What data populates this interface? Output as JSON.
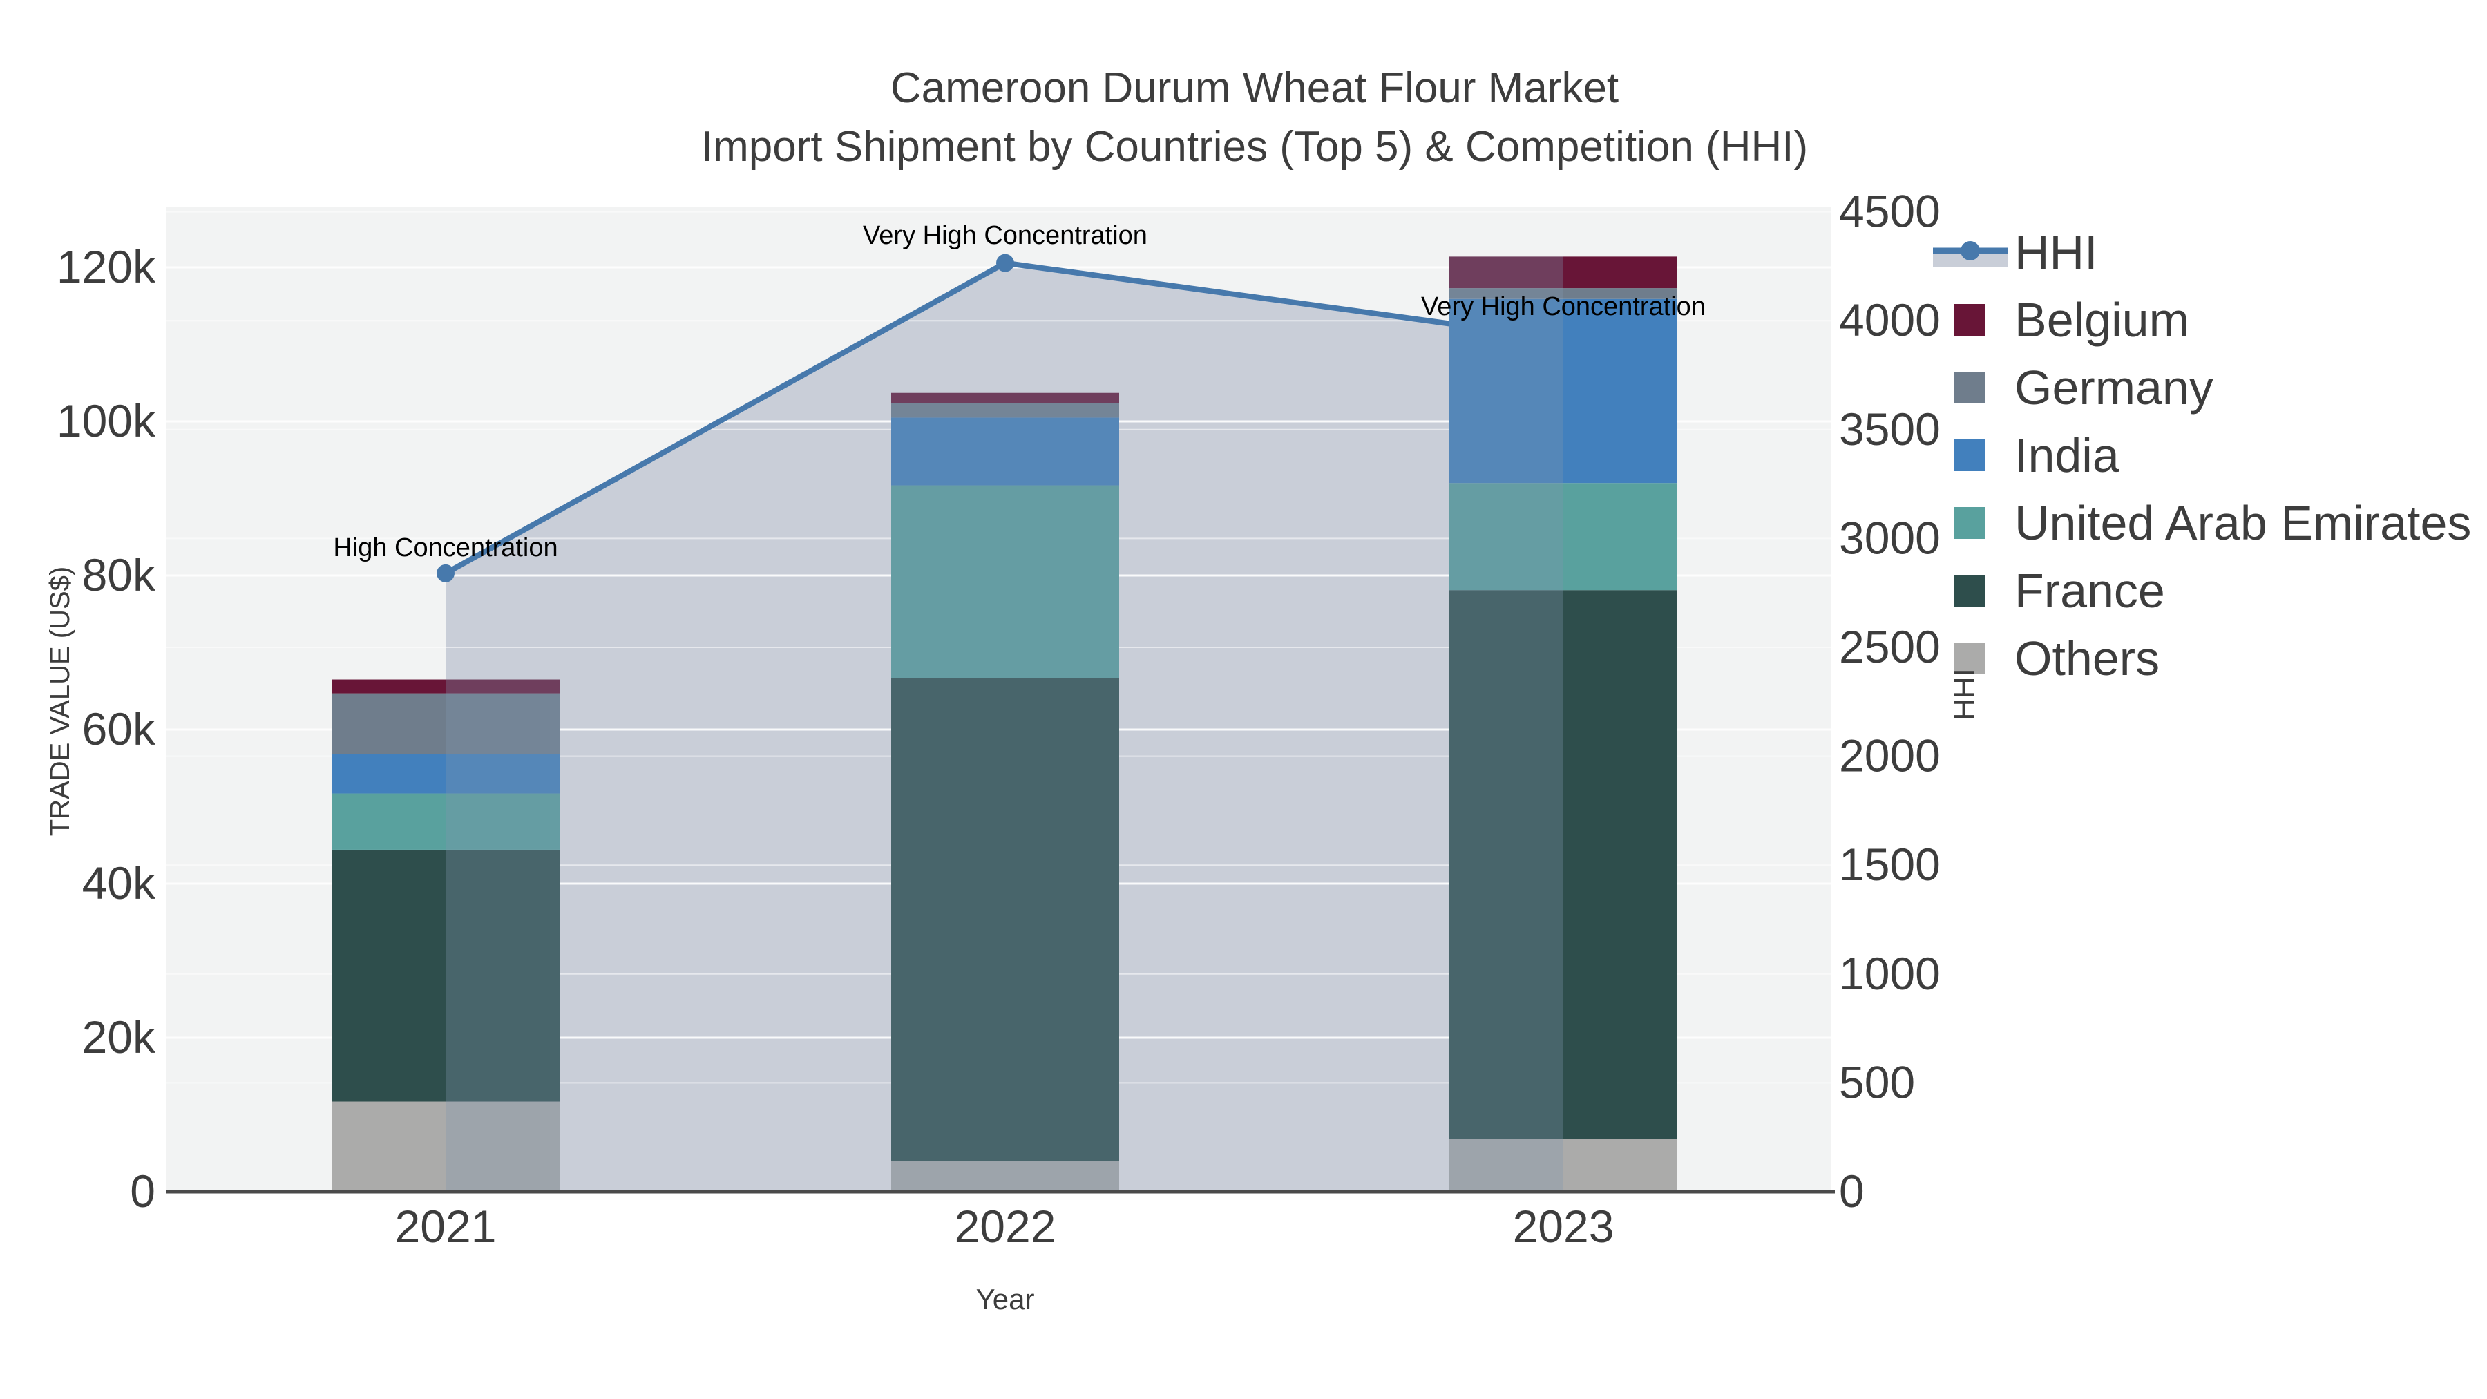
{
  "figure": {
    "title_line1": "Cameroon Durum Wheat Flour Market",
    "title_line2": "Import Shipment by Countries (Top 5) & Competition (HHI)",
    "x_axis_title": "Year",
    "y_left_title": "TRADE VALUE (US$)",
    "y_right_title": "HHI"
  },
  "legend": {
    "items": [
      {
        "label": "HHI",
        "type": "line",
        "color": "#4779AC",
        "band": "#C9CED8"
      },
      {
        "label": "Belgium",
        "type": "square",
        "color": "#681537"
      },
      {
        "label": "Germany",
        "type": "square",
        "color": "#6F7D8C"
      },
      {
        "label": "India",
        "type": "square",
        "color": "#4280BD"
      },
      {
        "label": "United Arab Emirates",
        "type": "square",
        "color": "#59A19E"
      },
      {
        "label": "France",
        "type": "square",
        "color": "#2E4E4C"
      },
      {
        "label": "Others",
        "type": "square",
        "color": "#ABABAA"
      }
    ]
  },
  "chart_data": {
    "type": "combo: stacked bar (left axis) + line with area fill (right axis)",
    "title": "Cameroon Durum Wheat Flour Market — Import Shipment by Countries (Top 5) & Competition (HHI)",
    "x_categories": [
      "2021",
      "2022",
      "2023"
    ],
    "bar_series_bottom_to_top": [
      {
        "name": "Others",
        "color": "#ABABAA",
        "values": [
          11700,
          4000,
          6900
        ]
      },
      {
        "name": "France",
        "color": "#2E4E4C",
        "values": [
          32700,
          62700,
          71200
        ]
      },
      {
        "name": "United Arab Emirates",
        "color": "#59A19E",
        "values": [
          7300,
          25000,
          13900
        ]
      },
      {
        "name": "India",
        "color": "#4280BD",
        "values": [
          5100,
          8800,
          23900
        ]
      },
      {
        "name": "Germany",
        "color": "#6F7D8C",
        "values": [
          7900,
          1900,
          1400
        ]
      },
      {
        "name": "Belgium",
        "color": "#681537",
        "values": [
          1800,
          1300,
          4100
        ]
      }
    ],
    "bar_totals": [
      66500,
      103700,
      121400
    ],
    "line_series": {
      "name": "HHI",
      "axis": "right",
      "values": [
        2840,
        4265,
        3915
      ],
      "color": "#4779AC",
      "area_fill": "#C9CED8"
    },
    "annotations": [
      {
        "x": "2021",
        "text": "High Concentration"
      },
      {
        "x": "2022",
        "text": "Very High Concentration"
      },
      {
        "x": "2023",
        "text": "Very High Concentration"
      }
    ],
    "y_left": {
      "title": "TRADE VALUE (US$)",
      "tick_labels": [
        "0",
        "20k",
        "40k",
        "60k",
        "80k",
        "100k",
        "120k"
      ],
      "tick_values": [
        0,
        20000,
        40000,
        60000,
        80000,
        100000,
        120000
      ],
      "range": [
        0,
        127800
      ]
    },
    "y_right": {
      "title": "HHI",
      "tick_labels": [
        "0",
        "500",
        "1000",
        "1500",
        "2000",
        "2500",
        "3000",
        "3500",
        "4000",
        "4500"
      ],
      "tick_values": [
        0,
        500,
        1000,
        1500,
        2000,
        2500,
        3000,
        3500,
        4000,
        4500
      ],
      "range": [
        0,
        4520
      ]
    },
    "x_axis": {
      "title": "Year"
    },
    "grid": true,
    "legend_position": "right"
  },
  "colors": {
    "background": "#FFFFFF",
    "plot_background": "#F2F3F3",
    "grid": "#FFFFFF",
    "axis_line": "#4A4A4A",
    "text": "#3D3D3D",
    "annotation_text": "#000000",
    "overlap_tint": "#7E96AE"
  }
}
